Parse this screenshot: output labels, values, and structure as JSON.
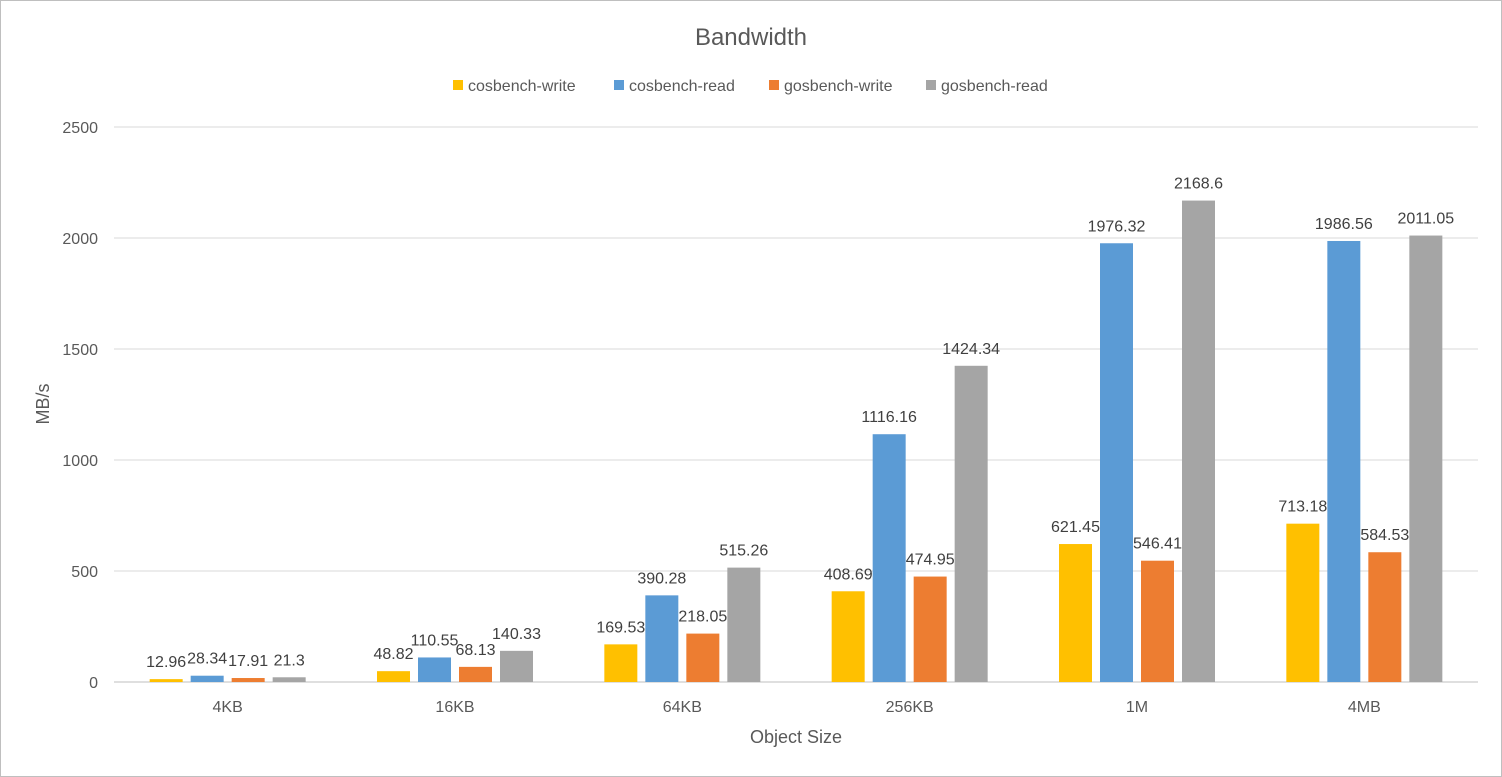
{
  "chart_data": {
    "type": "bar",
    "title": "Bandwidth",
    "xlabel": "Object Size",
    "ylabel": "MB/s",
    "ylim": [
      0,
      2500
    ],
    "yticks": [
      0,
      500,
      1000,
      1500,
      2000,
      2500
    ],
    "categories": [
      "4KB",
      "16KB",
      "64KB",
      "256KB",
      "1M",
      "4MB"
    ],
    "legend_position": "top",
    "grid": true,
    "series": [
      {
        "name": "cosbench-write",
        "color": "#FFC000",
        "values": [
          12.96,
          48.82,
          169.53,
          408.69,
          621.45,
          713.18
        ],
        "labels": [
          "12.96",
          "48.82",
          "169.53",
          "408.69",
          "621.45",
          "713.18"
        ]
      },
      {
        "name": "cosbench-read",
        "color": "#5B9BD5",
        "values": [
          28.34,
          110.55,
          390.28,
          1116.16,
          1976.32,
          1986.56
        ],
        "labels": [
          "28.34",
          "110.55",
          "390.28",
          "1116.16",
          "1976.32",
          "1986.56"
        ]
      },
      {
        "name": "gosbench-write",
        "color": "#ED7D31",
        "values": [
          17.91,
          68.13,
          218.05,
          474.95,
          546.41,
          584.53
        ],
        "labels": [
          "17.91",
          "68.13",
          "218.05",
          "474.95",
          "546.41",
          "584.53"
        ]
      },
      {
        "name": "gosbench-read",
        "color": "#A5A5A5",
        "values": [
          21.3,
          140.33,
          515.26,
          1424.34,
          2168.6,
          2011.05
        ],
        "labels": [
          "21.3",
          "140.33",
          "515.26",
          "1424.34",
          "2168.6",
          "2011.05"
        ]
      }
    ]
  }
}
